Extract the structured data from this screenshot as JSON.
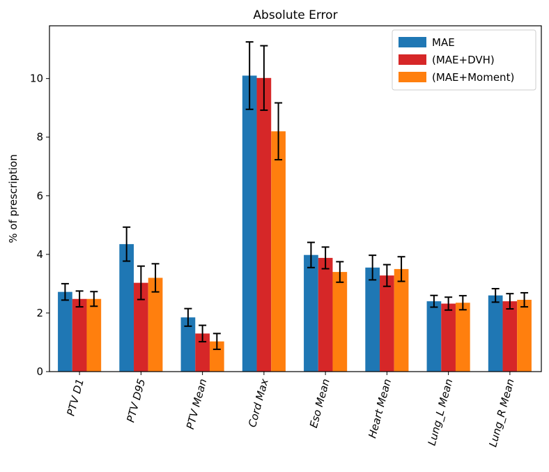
{
  "chart_data": {
    "type": "bar",
    "title": "Absolute Error",
    "xlabel": "",
    "ylabel": "% of prescription",
    "ylim": [
      0,
      11.8
    ],
    "yticks": [
      0,
      2,
      4,
      6,
      8,
      10
    ],
    "grid": false,
    "legend_position": "top-right",
    "categories": [
      "PTV D1",
      "PTV D95",
      "PTV Mean",
      "Cord Max",
      "Eso Mean",
      "Heart Mean",
      "Lung_L Mean",
      "Lung_R Mean"
    ],
    "series": [
      {
        "name": "MAE",
        "color": "#1f77b4",
        "values": [
          2.72,
          4.35,
          1.85,
          10.1,
          3.98,
          3.55,
          2.4,
          2.6
        ],
        "errors": [
          0.28,
          0.58,
          0.3,
          1.15,
          0.43,
          0.42,
          0.2,
          0.23
        ]
      },
      {
        "name": "(MAE+DVH)",
        "color": "#d62728",
        "values": [
          2.48,
          3.03,
          1.3,
          10.02,
          3.88,
          3.28,
          2.32,
          2.4
        ],
        "errors": [
          0.27,
          0.57,
          0.28,
          1.1,
          0.37,
          0.37,
          0.22,
          0.26
        ]
      },
      {
        "name": "(MAE+Moment)",
        "color": "#ff7f0e",
        "values": [
          2.48,
          3.2,
          1.03,
          8.2,
          3.4,
          3.5,
          2.35,
          2.45
        ],
        "errors": [
          0.25,
          0.48,
          0.27,
          0.97,
          0.35,
          0.42,
          0.24,
          0.24
        ]
      }
    ]
  }
}
